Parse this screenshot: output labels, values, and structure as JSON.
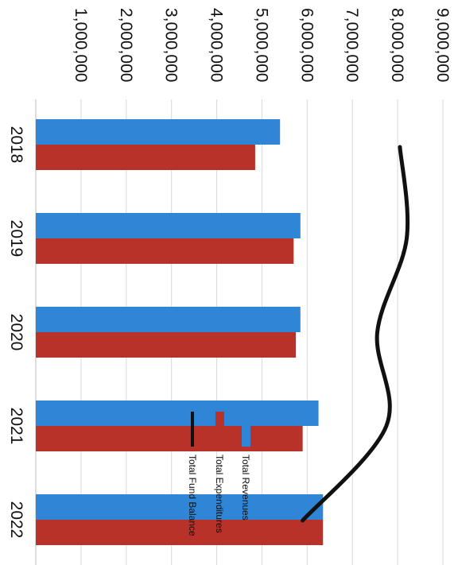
{
  "chart_data": {
    "type": "bar",
    "orientation": "horizontal-rotated",
    "categories": [
      "2018",
      "2019",
      "2020",
      "2021",
      "2022"
    ],
    "series": [
      {
        "name": "Total Revenues",
        "kind": "bar",
        "color": "#2f86d6",
        "values": [
          5400000,
          5850000,
          5850000,
          6250000,
          6350000
        ]
      },
      {
        "name": "Total Expenditures",
        "kind": "bar",
        "color": "#b8322a",
        "values": [
          4850000,
          5700000,
          5750000,
          5900000,
          6350000
        ]
      },
      {
        "name": "Total Fund Balance",
        "kind": "line",
        "color": "#111111",
        "values": [
          8050000,
          8200000,
          7550000,
          7750000,
          5900000
        ]
      }
    ],
    "value_axis": {
      "min": 0,
      "max": 9000000,
      "ticks": [
        1000000,
        2000000,
        3000000,
        4000000,
        5000000,
        6000000,
        7000000,
        8000000,
        9000000
      ],
      "tick_labels": [
        "1,000,000",
        "2,000,000",
        "3,000,000",
        "4,000,000",
        "5,000,000",
        "6,000,000",
        "7,000,000",
        "8,000,000",
        "9,000,000"
      ]
    },
    "grid": true,
    "legend_placement": "inside-right"
  }
}
